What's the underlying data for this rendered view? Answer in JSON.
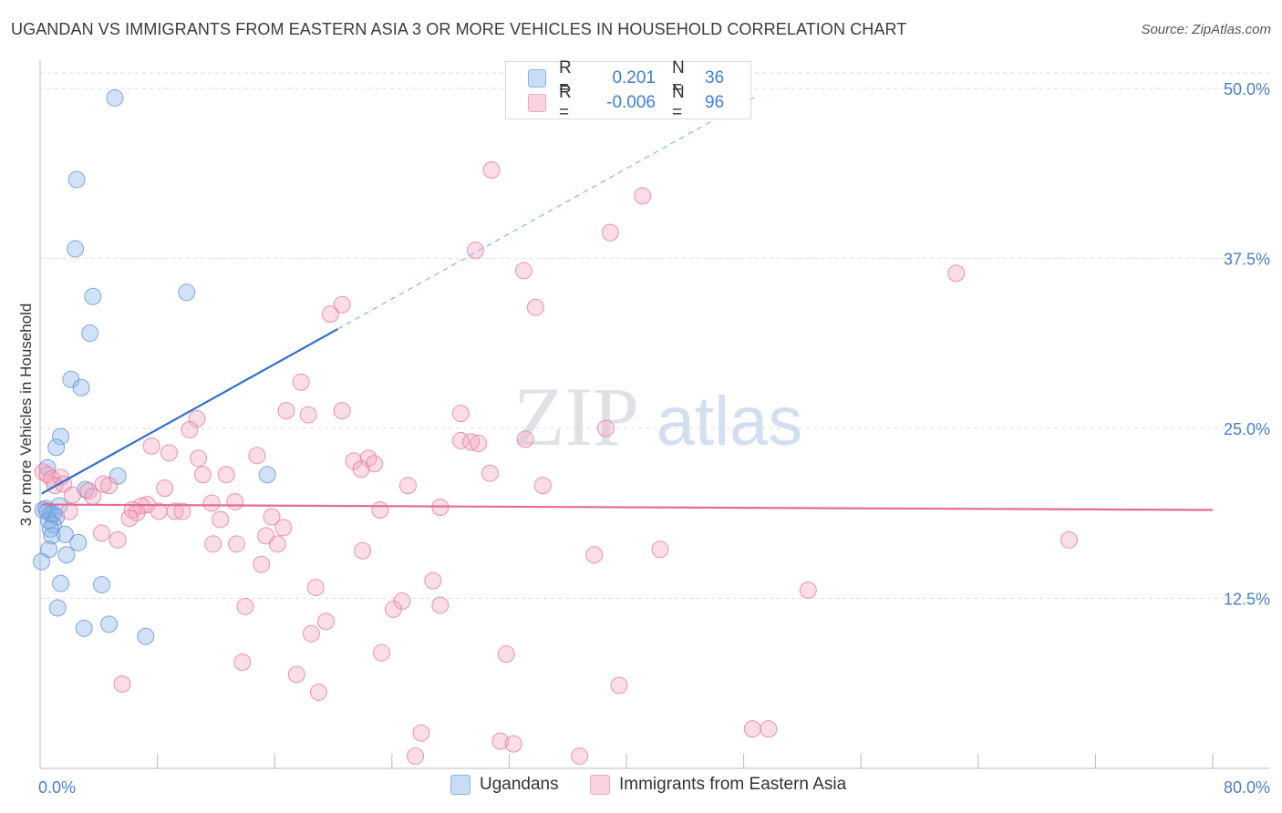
{
  "title": "UGANDAN VS IMMIGRANTS FROM EASTERN ASIA 3 OR MORE VEHICLES IN HOUSEHOLD CORRELATION CHART",
  "source": "Source: ZipAtlas.com",
  "watermark": {
    "zip": "ZIP",
    "atlas": "atlas"
  },
  "stats": [
    {
      "r_label": "R =",
      "r_value": "0.201",
      "n_label": "N =",
      "n_value": "36",
      "color": "#8ab4e8"
    },
    {
      "r_label": "R =",
      "r_value": "-0.006",
      "n_label": "N =",
      "n_value": "96",
      "color": "#f4a6bf"
    }
  ],
  "legend": [
    {
      "label": "Ugandans",
      "color": "#8ab4e8"
    },
    {
      "label": "Immigrants from Eastern Asia",
      "color": "#f4a6bf"
    }
  ],
  "chart_data": {
    "type": "scatter",
    "ylabel": "3 or more Vehicles in Household",
    "xlim": [
      0,
      80
    ],
    "ylim": [
      0,
      50
    ],
    "x_tick_labels": [
      {
        "value": 0,
        "label": "0.0%"
      },
      {
        "value": 80,
        "label": "80.0%"
      }
    ],
    "y_tick_labels": [
      {
        "value": 12.5,
        "label": "12.5%"
      },
      {
        "value": 25,
        "label": "25.0%"
      },
      {
        "value": 37.5,
        "label": "37.5%"
      },
      {
        "value": 50,
        "label": "50.0%"
      }
    ],
    "series": [
      {
        "name": "Ugandans",
        "color": "#8ab4e8",
        "stroke": "#5f93d6",
        "trend": {
          "x_start": 0.1,
          "y_start": 20.2,
          "x_solid_end": 20.3,
          "y_solid_end": 32.3,
          "x_end": 49,
          "y_end": 49.5,
          "line_color": "#2f6fcc"
        },
        "points": [
          [
            5.1,
            49.3
          ],
          [
            2.5,
            43.3
          ],
          [
            2.4,
            38.2
          ],
          [
            10.0,
            35.0
          ],
          [
            3.6,
            34.7
          ],
          [
            3.4,
            32.0
          ],
          [
            2.1,
            28.6
          ],
          [
            2.8,
            28.0
          ],
          [
            1.4,
            24.4
          ],
          [
            1.1,
            23.6
          ],
          [
            0.5,
            22.1
          ],
          [
            5.3,
            21.5
          ],
          [
            15.5,
            21.6
          ],
          [
            3.1,
            20.5
          ],
          [
            1.3,
            19.3
          ],
          [
            0.4,
            19.1
          ],
          [
            0.5,
            18.9
          ],
          [
            0.7,
            18.7
          ],
          [
            0.9,
            18.7
          ],
          [
            1.1,
            18.5
          ],
          [
            0.6,
            18.2
          ],
          [
            0.9,
            17.9
          ],
          [
            0.7,
            17.6
          ],
          [
            1.7,
            17.2
          ],
          [
            0.8,
            17.1
          ],
          [
            2.6,
            16.6
          ],
          [
            0.6,
            16.1
          ],
          [
            1.8,
            15.7
          ],
          [
            0.1,
            15.2
          ],
          [
            1.4,
            13.6
          ],
          [
            4.2,
            13.5
          ],
          [
            1.2,
            11.8
          ],
          [
            4.7,
            10.6
          ],
          [
            3.0,
            10.3
          ],
          [
            7.2,
            9.7
          ],
          [
            0.2,
            19.0
          ]
        ]
      },
      {
        "name": "Immigrants from Eastern Asia",
        "color": "#f4a6bf",
        "stroke": "#e27aa0",
        "trend": {
          "x_start": 0.1,
          "y_start": 19.4,
          "x_end": 80,
          "y_end": 19.0,
          "line_color": "#e36a99"
        },
        "points": [
          [
            30.8,
            44.0
          ],
          [
            41.1,
            42.1
          ],
          [
            38.9,
            39.4
          ],
          [
            29.7,
            38.1
          ],
          [
            33.0,
            36.6
          ],
          [
            62.5,
            36.4
          ],
          [
            20.6,
            34.1
          ],
          [
            19.8,
            33.4
          ],
          [
            33.8,
            33.9
          ],
          [
            17.8,
            28.4
          ],
          [
            16.8,
            26.3
          ],
          [
            18.3,
            26.0
          ],
          [
            20.6,
            26.3
          ],
          [
            28.7,
            26.1
          ],
          [
            10.7,
            25.7
          ],
          [
            10.2,
            24.9
          ],
          [
            38.6,
            25.0
          ],
          [
            28.7,
            24.1
          ],
          [
            29.4,
            24.0
          ],
          [
            29.9,
            23.9
          ],
          [
            33.1,
            24.2
          ],
          [
            7.6,
            23.7
          ],
          [
            8.8,
            23.2
          ],
          [
            14.8,
            23.0
          ],
          [
            10.8,
            22.8
          ],
          [
            21.4,
            22.6
          ],
          [
            22.4,
            22.8
          ],
          [
            22.8,
            22.4
          ],
          [
            21.9,
            22.0
          ],
          [
            30.7,
            21.7
          ],
          [
            11.1,
            21.6
          ],
          [
            12.7,
            21.6
          ],
          [
            0.2,
            21.8
          ],
          [
            0.5,
            21.6
          ],
          [
            0.8,
            21.3
          ],
          [
            1.4,
            21.4
          ],
          [
            1.0,
            20.8
          ],
          [
            1.6,
            20.9
          ],
          [
            4.3,
            20.9
          ],
          [
            4.7,
            20.8
          ],
          [
            25.1,
            20.8
          ],
          [
            34.3,
            20.8
          ],
          [
            8.5,
            20.6
          ],
          [
            3.3,
            20.4
          ],
          [
            2.2,
            20.1
          ],
          [
            3.6,
            20.0
          ],
          [
            11.7,
            19.5
          ],
          [
            13.3,
            19.6
          ],
          [
            7.3,
            19.4
          ],
          [
            6.9,
            19.3
          ],
          [
            27.3,
            19.2
          ],
          [
            6.3,
            19.0
          ],
          [
            6.6,
            18.8
          ],
          [
            8.1,
            18.9
          ],
          [
            9.2,
            18.9
          ],
          [
            9.7,
            18.9
          ],
          [
            23.2,
            19.0
          ],
          [
            15.8,
            18.5
          ],
          [
            6.1,
            18.4
          ],
          [
            2.0,
            18.9
          ],
          [
            12.3,
            18.3
          ],
          [
            16.6,
            17.7
          ],
          [
            4.2,
            17.3
          ],
          [
            5.3,
            16.8
          ],
          [
            15.4,
            17.1
          ],
          [
            11.8,
            16.5
          ],
          [
            13.4,
            16.5
          ],
          [
            16.2,
            16.5
          ],
          [
            22.0,
            16.0
          ],
          [
            37.8,
            15.7
          ],
          [
            42.3,
            16.1
          ],
          [
            70.2,
            16.8
          ],
          [
            15.1,
            15.0
          ],
          [
            26.8,
            13.8
          ],
          [
            18.8,
            13.3
          ],
          [
            52.4,
            13.1
          ],
          [
            24.7,
            12.3
          ],
          [
            27.3,
            12.0
          ],
          [
            14.0,
            11.9
          ],
          [
            24.1,
            11.7
          ],
          [
            19.5,
            10.8
          ],
          [
            18.5,
            9.9
          ],
          [
            23.3,
            8.5
          ],
          [
            31.8,
            8.4
          ],
          [
            13.8,
            7.8
          ],
          [
            17.5,
            6.9
          ],
          [
            5.6,
            6.2
          ],
          [
            39.5,
            6.1
          ],
          [
            19.0,
            5.6
          ],
          [
            48.6,
            2.9
          ],
          [
            49.7,
            2.9
          ],
          [
            26.0,
            2.6
          ],
          [
            31.4,
            2.0
          ],
          [
            32.3,
            1.8
          ],
          [
            25.6,
            0.9
          ],
          [
            36.8,
            0.9
          ]
        ]
      }
    ]
  }
}
